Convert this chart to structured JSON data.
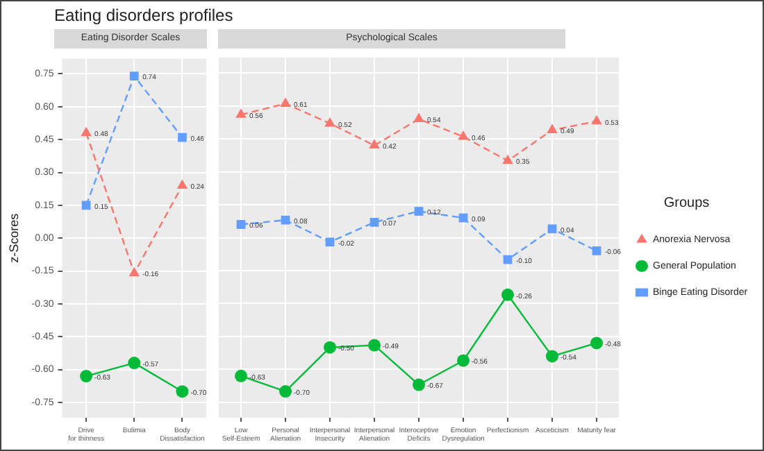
{
  "chart_data": [
    {
      "type": "line",
      "title": "Eating disorders profiles",
      "subtitle": "Eating Disorder Scales",
      "ylabel": "z-Scores",
      "categories": [
        "Drive\nfor thinness",
        "Bulimia",
        "Body\nDissatisfaction"
      ],
      "ylim": [
        -0.82,
        0.82
      ],
      "yticks": [
        {
          "value": -0.75,
          "label": "-0.75"
        },
        {
          "value": -0.6,
          "label": "-0.60"
        },
        {
          "value": -0.45,
          "label": "-0.45"
        },
        {
          "value": -0.3,
          "label": "-0.30"
        },
        {
          "value": -0.15,
          "label": "-0.15"
        },
        {
          "value": 0,
          "label": "0.00"
        },
        {
          "value": 0.15,
          "label": "0.15"
        },
        {
          "value": 0.3,
          "label": "0.30"
        },
        {
          "value": 0.45,
          "label": "0.45"
        },
        {
          "value": 0.6,
          "label": "0.60"
        },
        {
          "value": 0.75,
          "label": "0.75"
        }
      ],
      "grid": true,
      "legend": false,
      "series": [
        {
          "color": "#f8766d",
          "marker": "triangle",
          "line_style": "dashed",
          "values": [
            0.48,
            -0.16,
            0.24
          ],
          "value_labels": [
            "0.48",
            "-0.16",
            "0.24"
          ]
        },
        {
          "color": "#00ba38",
          "marker": "circle",
          "line_style": "solid",
          "values": [
            -0.63,
            -0.57,
            -0.7
          ],
          "value_labels": [
            "-0.63",
            "-0.57",
            "-0.70"
          ]
        },
        {
          "color": "#619cff",
          "marker": "square",
          "line_style": "dashed",
          "values": [
            0.15,
            0.74,
            0.46
          ],
          "value_labels": [
            "0.15",
            "0.74",
            "0.46"
          ]
        }
      ]
    },
    {
      "type": "line",
      "subtitle": "Psychological Scales",
      "legend_title": "Groups",
      "categories": [
        "Low\nSelf-Esteem",
        "Personal\nAlienation",
        "Interpersonal\nInsecurity",
        "Interpersonal\nAlienation",
        "Interoceptive\nDeficits",
        "Emotion\nDysregulation",
        "Perfectionism",
        "Asceticism",
        "Maturity fear"
      ],
      "ylim": [
        -0.82,
        0.82
      ],
      "yticks": [
        -0.75,
        -0.6,
        -0.45,
        -0.3,
        -0.15,
        0,
        0.15,
        0.3,
        0.45,
        0.6,
        0.75
      ],
      "tick_labels": "x",
      "grid": true,
      "legend": "right",
      "series": [
        {
          "name": "Anorexia Nervosa",
          "color": "#f8766d",
          "marker": "triangle",
          "line_style": "dashed",
          "values": [
            0.56,
            0.61,
            0.52,
            0.42,
            0.54,
            0.46,
            0.35,
            0.49,
            0.53
          ],
          "value_labels": [
            "0.56",
            "0.61",
            "0.52",
            "0.42",
            "0.54",
            "0.46",
            "0.35",
            "0.49",
            "0.53"
          ]
        },
        {
          "name": "General Population",
          "color": "#00ba38",
          "marker": "circle",
          "line_style": "solid",
          "values": [
            -0.63,
            -0.7,
            -0.5,
            -0.49,
            -0.67,
            -0.56,
            -0.26,
            -0.54,
            -0.48
          ],
          "value_labels": [
            "-0.63",
            "-0.70",
            "-0.50",
            "-0.49",
            "-0.67",
            "-0.56",
            "-0.26",
            "-0.54",
            "-0.48"
          ]
        },
        {
          "name": "Binge Eating Disorder",
          "color": "#619cff",
          "marker": "square",
          "line_style": "dashed",
          "values": [
            0.06,
            0.08,
            -0.02,
            0.07,
            0.12,
            0.09,
            -0.1,
            0.04,
            -0.06
          ],
          "value_labels": [
            "0.06",
            "0.08",
            "-0.02",
            "0.07",
            "0.12",
            "0.09",
            "-0.10",
            "0.04",
            "-0.06"
          ]
        }
      ]
    }
  ]
}
